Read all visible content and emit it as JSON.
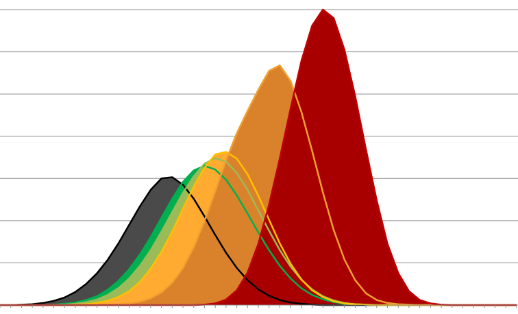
{
  "chart_data": {
    "type": "area",
    "title": "",
    "xlabel": "",
    "ylabel": "",
    "grid": true,
    "legend": "none",
    "x": [
      0,
      1,
      2,
      3,
      4,
      5,
      6,
      7,
      8,
      9,
      10,
      11,
      12,
      13,
      14,
      15,
      16,
      17,
      18,
      19,
      20,
      21,
      22,
      23,
      24,
      25,
      26,
      27,
      28,
      29,
      30,
      31,
      32,
      33,
      34,
      35,
      36,
      37,
      38,
      39,
      40,
      41,
      42,
      43,
      44,
      45,
      46,
      47,
      48
    ],
    "ylim": [
      0,
      7
    ],
    "series": [
      {
        "color": "#4a4a4a",
        "outline": "#000000",
        "values": [
          0,
          0,
          0.01,
          0.02,
          0.05,
          0.1,
          0.18,
          0.31,
          0.5,
          0.75,
          1.07,
          1.46,
          1.9,
          2.34,
          2.73,
          3.0,
          3.03,
          2.85,
          2.52,
          2.1,
          1.66,
          1.24,
          0.88,
          0.59,
          0.37,
          0.22,
          0.12,
          0.06,
          0.03,
          0.01,
          0,
          0,
          0,
          0,
          0,
          0,
          0,
          0,
          0,
          0,
          0,
          0,
          0,
          0,
          0,
          0,
          0,
          0,
          0
        ]
      },
      {
        "color": "#00b050",
        "outline": "#00b050",
        "values": [
          0,
          0,
          0,
          0,
          0,
          0.01,
          0.03,
          0.06,
          0.12,
          0.21,
          0.36,
          0.57,
          0.85,
          1.2,
          1.61,
          2.07,
          2.52,
          2.92,
          3.19,
          3.3,
          3.21,
          2.97,
          2.6,
          2.17,
          1.72,
          1.3,
          0.93,
          0.63,
          0.4,
          0.24,
          0.14,
          0.07,
          0.03,
          0.02,
          0.01,
          0,
          0,
          0,
          0,
          0,
          0,
          0,
          0,
          0,
          0,
          0,
          0,
          0,
          0
        ]
      },
      {
        "color": "#9bbb59",
        "outline": "#9bbb59",
        "values": [
          0,
          0,
          0,
          0,
          0,
          0,
          0.01,
          0.03,
          0.07,
          0.13,
          0.24,
          0.4,
          0.63,
          0.93,
          1.3,
          1.74,
          2.2,
          2.66,
          3.05,
          3.35,
          3.48,
          3.4,
          3.13,
          2.73,
          2.24,
          1.76,
          1.3,
          0.91,
          0.6,
          0.37,
          0.21,
          0.11,
          0.05,
          0.02,
          0.01,
          0,
          0,
          0,
          0,
          0,
          0,
          0,
          0,
          0,
          0,
          0,
          0,
          0,
          0
        ]
      },
      {
        "color": "#ffab32",
        "outline": "#ffc000",
        "values": [
          0,
          0,
          0,
          0,
          0,
          0,
          0,
          0.01,
          0.02,
          0.05,
          0.1,
          0.19,
          0.33,
          0.55,
          0.86,
          1.26,
          1.74,
          2.28,
          2.81,
          3.25,
          3.57,
          3.63,
          3.47,
          3.1,
          2.59,
          2.02,
          1.46,
          0.98,
          0.61,
          0.35,
          0.19,
          0.09,
          0.04,
          0.02,
          0.01,
          0,
          0,
          0,
          0,
          0,
          0,
          0,
          0,
          0,
          0,
          0,
          0,
          0,
          0
        ]
      },
      {
        "color": "#d9822b",
        "outline": "#f0a030",
        "values": [
          0,
          0,
          0,
          0,
          0,
          0,
          0,
          0,
          0,
          0,
          0.01,
          0.02,
          0.04,
          0.08,
          0.16,
          0.3,
          0.53,
          0.88,
          1.37,
          1.99,
          2.7,
          3.43,
          4.07,
          4.6,
          5.1,
          5.55,
          5.68,
          5.31,
          4.58,
          3.65,
          2.67,
          1.78,
          1.08,
          0.59,
          0.28,
          0.12,
          0.05,
          0.02,
          0.01,
          0,
          0,
          0,
          0,
          0,
          0,
          0,
          0,
          0,
          0
        ]
      },
      {
        "color": "#a80000",
        "outline": "#ff6060",
        "values": [
          0,
          0,
          0,
          0,
          0,
          0,
          0,
          0,
          0,
          0,
          0,
          0,
          0,
          0,
          0,
          0,
          0,
          0,
          0,
          0.01,
          0.04,
          0.13,
          0.35,
          0.77,
          1.45,
          2.38,
          3.48,
          4.66,
          5.78,
          6.62,
          7.0,
          6.8,
          6.05,
          4.95,
          3.69,
          2.48,
          1.45,
          0.76,
          0.33,
          0.12,
          0.04,
          0.01,
          0,
          0,
          0,
          0,
          0,
          0,
          0
        ]
      }
    ],
    "lines": [
      {
        "color": "#000000",
        "of_series": 0
      },
      {
        "color": "#00b050",
        "of_series": 1
      },
      {
        "color": "#9bbb59",
        "of_series": 2
      },
      {
        "color": "#ffc000",
        "of_series": 3
      },
      {
        "color": "#f0a030",
        "of_series": 4
      },
      {
        "color": "#c00000",
        "of_series": 5
      }
    ]
  }
}
